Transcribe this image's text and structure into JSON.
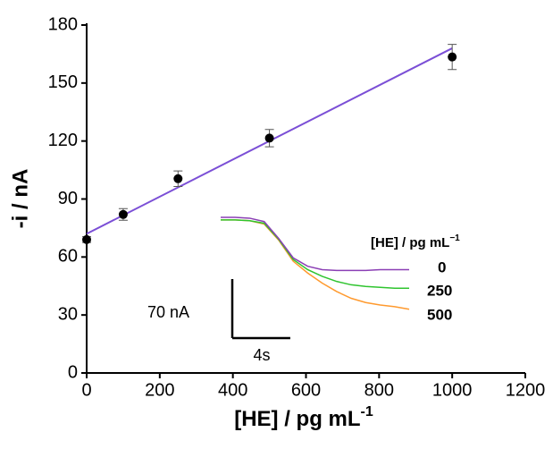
{
  "chart_data": [
    {
      "type": "scatter",
      "x_label": "[HE] / pg mL",
      "x_label_sup": "-1",
      "y_label": "-i / nA",
      "x": [
        0,
        100,
        250,
        500,
        1000
      ],
      "values": [
        69,
        82,
        100.5,
        121.5,
        163.5
      ],
      "errors": [
        1.5,
        3,
        4,
        4.5,
        6.5
      ],
      "color": "#000000",
      "fit_x": [
        0,
        1000
      ],
      "fit_values": [
        72,
        168
      ],
      "fit_color": "#7b4fd6",
      "xlim": [
        0,
        1200
      ],
      "xticks": [
        0,
        200,
        400,
        600,
        800,
        1000,
        1200
      ],
      "ylim": [
        0,
        180
      ],
      "yticks": [
        0,
        30,
        60,
        90,
        120,
        150,
        180
      ]
    },
    {
      "type": "line",
      "legend_title": "[HE] / pg mL",
      "legend_title_sup": "−1",
      "x": [
        0,
        1,
        2,
        3,
        4,
        5,
        6,
        7,
        8,
        9,
        10,
        11,
        12,
        13
      ],
      "series": [
        {
          "name": "0",
          "color": "#8b3fb5",
          "values": [
            0,
            0,
            -1,
            -5,
            -25,
            -48,
            -58,
            -62,
            -63,
            -63,
            -63,
            -62,
            -62,
            -62
          ]
        },
        {
          "name": "250",
          "color": "#2fc42f",
          "values": [
            -3,
            -3,
            -4,
            -7,
            -26,
            -50,
            -62,
            -70,
            -76,
            -80,
            -82,
            -83,
            -84,
            -84
          ]
        },
        {
          "name": "500",
          "color": "#ff9a2e",
          "values": [
            -3,
            -3,
            -4,
            -8,
            -27,
            -52,
            -66,
            -78,
            -88,
            -96,
            -101,
            -104,
            -106,
            -109
          ]
        }
      ],
      "xlim": [
        0,
        13
      ],
      "ylim": [
        -110,
        0
      ],
      "scale_bar": {
        "x_label": "4s",
        "x_length": 4,
        "y_label": "70 nA",
        "y_length": 70
      }
    }
  ]
}
